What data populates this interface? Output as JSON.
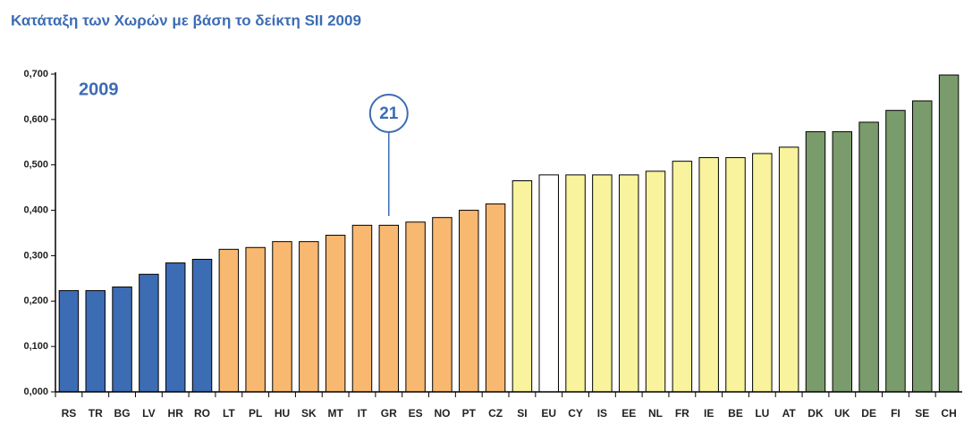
{
  "chart_data": {
    "type": "bar",
    "title": "Κατάταξη των Χωρών με βάση το δείκτη SII 2009",
    "annotations": [
      "2009",
      "21"
    ],
    "categories": [
      "RS",
      "TR",
      "BG",
      "LV",
      "HR",
      "RO",
      "LT",
      "PL",
      "HU",
      "SK",
      "MT",
      "IT",
      "GR",
      "ES",
      "NO",
      "PT",
      "CZ",
      "SI",
      "EU",
      "CY",
      "IS",
      "EE",
      "NL",
      "FR",
      "IE",
      "BE",
      "LU",
      "AT",
      "DK",
      "UK",
      "DE",
      "FI",
      "SE",
      "CH"
    ],
    "values": [
      0.223,
      0.223,
      0.231,
      0.259,
      0.284,
      0.292,
      0.314,
      0.318,
      0.331,
      0.331,
      0.345,
      0.367,
      0.367,
      0.374,
      0.384,
      0.4,
      0.414,
      0.465,
      0.478,
      0.478,
      0.478,
      0.478,
      0.486,
      0.508,
      0.516,
      0.516,
      0.525,
      0.539,
      0.573,
      0.573,
      0.594,
      0.62,
      0.641,
      0.698
    ],
    "colors": [
      "#3c6cb4",
      "#3c6cb4",
      "#3c6cb4",
      "#3c6cb4",
      "#3c6cb4",
      "#3c6cb4",
      "#f9b870",
      "#f9b870",
      "#f9b870",
      "#f9b870",
      "#f9b870",
      "#f9b870",
      "#f9b870",
      "#f9b870",
      "#f9b870",
      "#f9b870",
      "#f9b870",
      "#f8f39c",
      "#ffffff",
      "#f8f39c",
      "#f8f39c",
      "#f8f39c",
      "#f8f39c",
      "#f8f39c",
      "#f8f39c",
      "#f8f39c",
      "#f8f39c",
      "#f8f39c",
      "#7a9c6c",
      "#7a9c6c",
      "#7a9c6c",
      "#7a9c6c",
      "#7a9c6c",
      "#7a9c6c"
    ],
    "ylim": [
      0,
      0.7
    ],
    "yticks": [
      {
        "value": 0,
        "label": "0,000"
      },
      {
        "value": 0.1,
        "label": "0,100"
      },
      {
        "value": 0.2,
        "label": "0,200"
      },
      {
        "value": 0.3,
        "label": "0,300"
      },
      {
        "value": 0.4,
        "label": "0,400"
      },
      {
        "value": 0.5,
        "label": "0,500"
      },
      {
        "value": 0.6,
        "label": "0,600"
      },
      {
        "value": 0.7,
        "label": "0,700"
      }
    ],
    "grid": false
  }
}
